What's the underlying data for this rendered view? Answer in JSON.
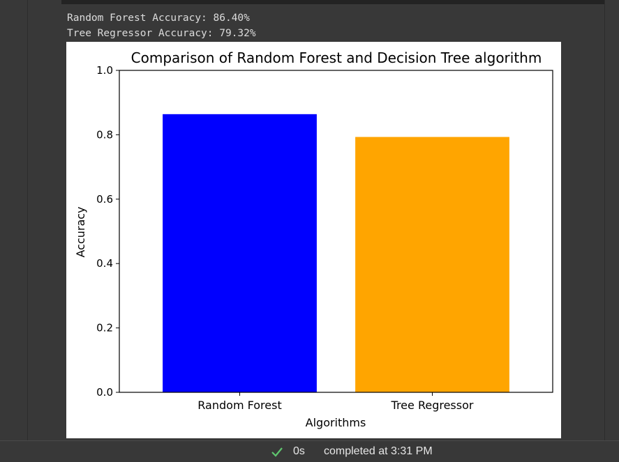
{
  "output": {
    "lines": [
      "Random Forest Accuracy: 86.40%",
      "Tree Regressor Accuracy: 79.32%"
    ]
  },
  "chart_data": {
    "type": "bar",
    "title": "Comparison of Random Forest and Decision Tree algorithm",
    "xlabel": "Algorithms",
    "ylabel": "Accuracy",
    "categories": [
      "Random Forest",
      "Tree Regressor"
    ],
    "values": [
      0.864,
      0.7932
    ],
    "colors": [
      "#0000ff",
      "#ffa500"
    ],
    "ylim": [
      0,
      1.0
    ],
    "yticks": [
      "0.0",
      "0.2",
      "0.4",
      "0.6",
      "0.8",
      "1.0"
    ],
    "grid": false
  },
  "status": {
    "icon": "check-icon",
    "elapsed": "0s",
    "completed": "completed at 3:31 PM"
  }
}
